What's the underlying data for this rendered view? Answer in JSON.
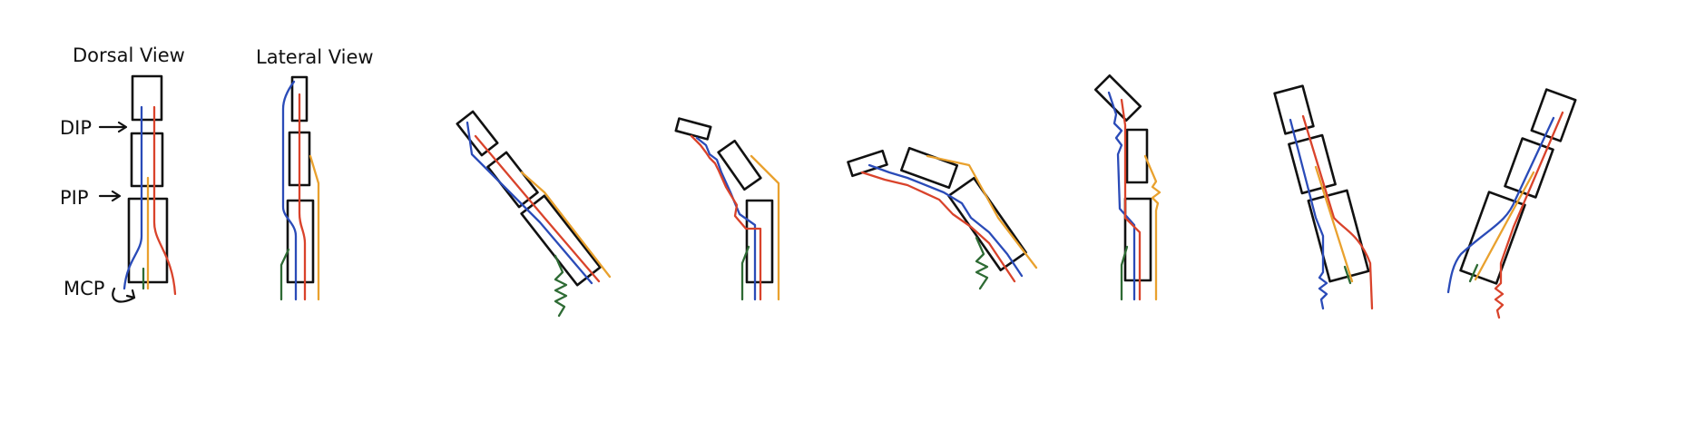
{
  "labels": {
    "dorsal_view": "Dorsal View",
    "lateral_view": "Lateral View",
    "dip": "DIP",
    "pip": "PIP",
    "mcp": "MCP"
  },
  "colors": {
    "outline": "#111111",
    "blue_tendon": "#2a4bb8",
    "red_tendon": "#d9432b",
    "orange_tendon": "#e9a12e",
    "green_tendon": "#2e6b34"
  }
}
